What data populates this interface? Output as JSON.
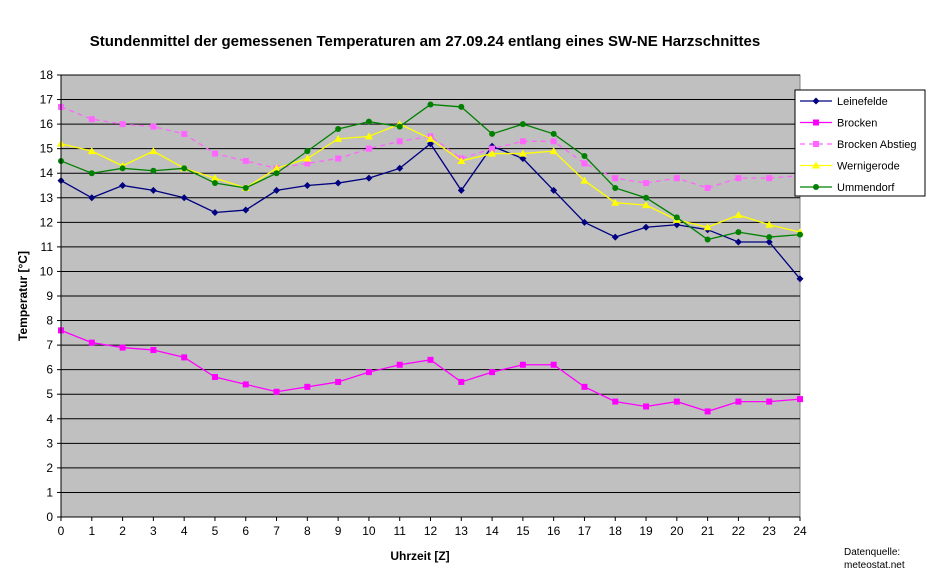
{
  "chart_data": {
    "type": "line",
    "title": "Stundenmittel der gemessenen Temperaturen am 27.09.24 entlang eines SW-NE Harzschnittes",
    "xlabel": "Uhrzeit [Z]",
    "ylabel": "Temperatur [°C]",
    "x": [
      0,
      1,
      2,
      3,
      4,
      5,
      6,
      7,
      8,
      9,
      10,
      11,
      12,
      13,
      14,
      15,
      16,
      17,
      18,
      19,
      20,
      21,
      22,
      23,
      24
    ],
    "xlim": [
      0,
      24
    ],
    "ylim": [
      0,
      18
    ],
    "yticks": [
      0,
      1,
      2,
      3,
      4,
      5,
      6,
      7,
      8,
      9,
      10,
      11,
      12,
      13,
      14,
      15,
      16,
      17,
      18
    ],
    "grid": "horizontal",
    "plot_background": "#C0C0C0",
    "legend_position": "right",
    "series": [
      {
        "name": "Leinefelde",
        "color": "#000080",
        "marker": "diamond",
        "dash": "solid",
        "values": [
          13.7,
          13.0,
          13.5,
          13.3,
          13.0,
          12.4,
          12.5,
          13.3,
          13.5,
          13.6,
          13.8,
          14.2,
          15.2,
          13.3,
          15.1,
          14.6,
          13.3,
          12.0,
          11.4,
          11.8,
          11.9,
          11.7,
          11.2,
          11.2,
          9.7
        ]
      },
      {
        "name": "Brocken",
        "color": "#FF00FF",
        "marker": "square",
        "dash": "solid",
        "values": [
          7.6,
          7.1,
          6.9,
          6.8,
          6.5,
          5.7,
          5.4,
          5.1,
          5.3,
          5.5,
          5.9,
          6.2,
          6.4,
          5.5,
          5.9,
          6.2,
          6.2,
          5.3,
          4.7,
          4.5,
          4.7,
          4.3,
          4.7,
          4.7,
          4.8
        ]
      },
      {
        "name": "Brocken Abstieg",
        "color": "#FF66FF",
        "marker": "square",
        "dash": "dashed",
        "values": [
          16.7,
          16.2,
          16.0,
          15.9,
          15.6,
          14.8,
          14.5,
          14.2,
          14.4,
          14.6,
          15.0,
          15.3,
          15.5,
          14.6,
          15.0,
          15.3,
          15.3,
          14.4,
          13.8,
          13.6,
          13.8,
          13.4,
          13.8,
          13.8,
          13.9
        ]
      },
      {
        "name": "Wernigerode",
        "color": "#FFFF00",
        "marker": "triangle",
        "dash": "solid",
        "values": [
          15.2,
          14.9,
          14.3,
          14.9,
          14.2,
          13.8,
          13.4,
          14.2,
          14.6,
          15.4,
          15.5,
          16.0,
          15.4,
          14.5,
          14.8,
          14.8,
          14.9,
          13.7,
          12.8,
          12.7,
          12.1,
          11.8,
          12.3,
          11.9,
          11.6
        ]
      },
      {
        "name": "Ummendorf",
        "color": "#008000",
        "marker": "circle",
        "dash": "solid",
        "values": [
          14.5,
          14.0,
          14.2,
          14.1,
          14.2,
          13.6,
          13.4,
          14.0,
          14.9,
          15.8,
          16.1,
          15.9,
          16.8,
          16.7,
          15.6,
          16.0,
          15.6,
          14.7,
          13.4,
          13.0,
          12.2,
          11.3,
          11.6,
          11.4,
          11.5
        ]
      }
    ]
  },
  "source_note": {
    "line1": "Datenquelle:",
    "line2": "meteostat.net"
  }
}
